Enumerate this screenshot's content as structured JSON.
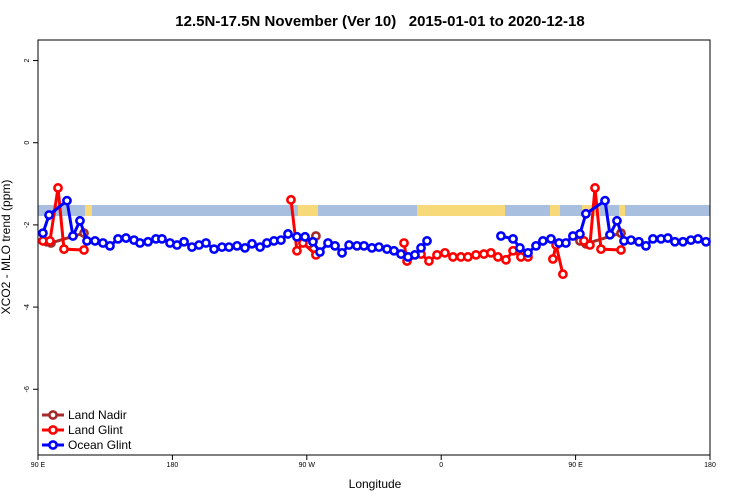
{
  "chart_data": {
    "type": "line",
    "title": "12.5N-17.5N November (Ver 10)   2015-01-01 to 2020-12-18",
    "x_label": "Longitude",
    "y_label": "XCO2 - MLO trend (ppm)",
    "xlim": [
      90,
      540
    ],
    "xticks": [
      {
        "value": 90,
        "label": "90 E"
      },
      {
        "value": 180,
        "label": "180"
      },
      {
        "value": 270,
        "label": "90 W"
      },
      {
        "value": 360,
        "label": "0"
      },
      {
        "value": 450,
        "label": "90 E"
      },
      {
        "value": 540,
        "label": "180"
      }
    ],
    "ylim": [
      -7.6,
      2.5
    ],
    "yticks": [
      -6,
      -4,
      -2,
      0,
      2
    ],
    "legend": "bottom-left",
    "series": [
      {
        "name": "Land Nadir",
        "color": "#a52a2a",
        "x": [
          96.0,
          98.7,
          120.8,
          null,
          271.5,
          276.1,
          null,
          452.9,
          456.9,
          480.4
        ],
        "values": [
          -2.41,
          -2.44,
          -2.2,
          null,
          -2.46,
          -2.27,
          null,
          -2.39,
          -2.46,
          -2.2
        ]
      },
      {
        "name": "Land Glint",
        "color": "#ff0000",
        "x": [
          93.3,
          98.0,
          103.4,
          107.4,
          120.8,
          null,
          259.4,
          263.4,
          267.4,
          276.1,
          null,
          335.1,
          337.1,
          346.5,
          351.8,
          357.2,
          362.5,
          367.9,
          373.2,
          377.9,
          383.3,
          388.6,
          393.3,
          398.0,
          403.4,
          408.1,
          413.4,
          418.1,
          null,
          434.8,
          436.9,
          441.5,
          null,
          455.6,
          459.6,
          463.0,
          467.0,
          480.4
        ],
        "values": [
          -2.39,
          -2.39,
          -1.1,
          -2.59,
          -2.61,
          null,
          -1.39,
          -2.63,
          -2.44,
          -2.73,
          null,
          -2.44,
          -2.88,
          -2.71,
          -2.88,
          -2.73,
          -2.68,
          -2.78,
          -2.78,
          -2.78,
          -2.73,
          -2.71,
          -2.68,
          -2.78,
          -2.85,
          -2.63,
          -2.78,
          -2.78,
          null,
          -2.83,
          -2.49,
          -3.2,
          null,
          -2.39,
          -2.49,
          -1.1,
          -2.59,
          -2.61
        ]
      },
      {
        "name": "Ocean Glint",
        "color": "#0000ff",
        "x": [
          93.3,
          97.4,
          109.4,
          113.4,
          118.1,
          122.8,
          128.2,
          133.5,
          138.2,
          143.6,
          148.9,
          154.3,
          158.3,
          163.7,
          169.0,
          173.0,
          178.4,
          183.1,
          187.8,
          193.1,
          197.8,
          202.5,
          207.9,
          213.2,
          217.9,
          223.3,
          228.6,
          233.3,
          238.7,
          243.3,
          248.0,
          252.7,
          257.4,
          263.4,
          268.8,
          274.1,
          278.8,
          284.2,
          288.9,
          293.6,
          298.3,
          303.6,
          308.3,
          313.6,
          318.3,
          323.7,
          328.4,
          333.1,
          337.8,
          342.4,
          346.5,
          350.5,
          null,
          400.0,
          408.1,
          412.7,
          418.1,
          423.5,
          428.1,
          433.5,
          438.9,
          443.5,
          448.2,
          452.9,
          456.9,
          469.7,
          473.0,
          477.7,
          482.4,
          487.1,
          492.4,
          497.1,
          501.8,
          507.2,
          511.8,
          516.5,
          521.9,
          527.2,
          532.0,
          537.3
        ],
        "values": [
          -2.2,
          -1.76,
          -1.41,
          -2.27,
          -1.9,
          -2.39,
          -2.39,
          -2.44,
          -2.51,
          -2.34,
          -2.32,
          -2.37,
          -2.44,
          -2.41,
          -2.34,
          -2.34,
          -2.44,
          -2.49,
          -2.41,
          -2.54,
          -2.49,
          -2.44,
          -2.59,
          -2.54,
          -2.54,
          -2.51,
          -2.56,
          -2.46,
          -2.54,
          -2.44,
          -2.39,
          -2.37,
          -2.22,
          -2.29,
          -2.29,
          -2.41,
          -2.66,
          -2.44,
          -2.51,
          -2.68,
          -2.49,
          -2.51,
          -2.51,
          -2.56,
          -2.54,
          -2.59,
          -2.63,
          -2.71,
          -2.78,
          -2.73,
          -2.56,
          -2.39,
          null,
          -2.27,
          -2.34,
          -2.56,
          -2.68,
          -2.51,
          -2.39,
          -2.34,
          -2.44,
          -2.44,
          -2.27,
          -2.22,
          -1.73,
          -1.41,
          -2.24,
          -1.9,
          -2.39,
          -2.37,
          -2.41,
          -2.51,
          -2.34,
          -2.34,
          -2.32,
          -2.41,
          -2.41,
          -2.37,
          -2.34,
          -2.41
        ]
      }
    ]
  }
}
